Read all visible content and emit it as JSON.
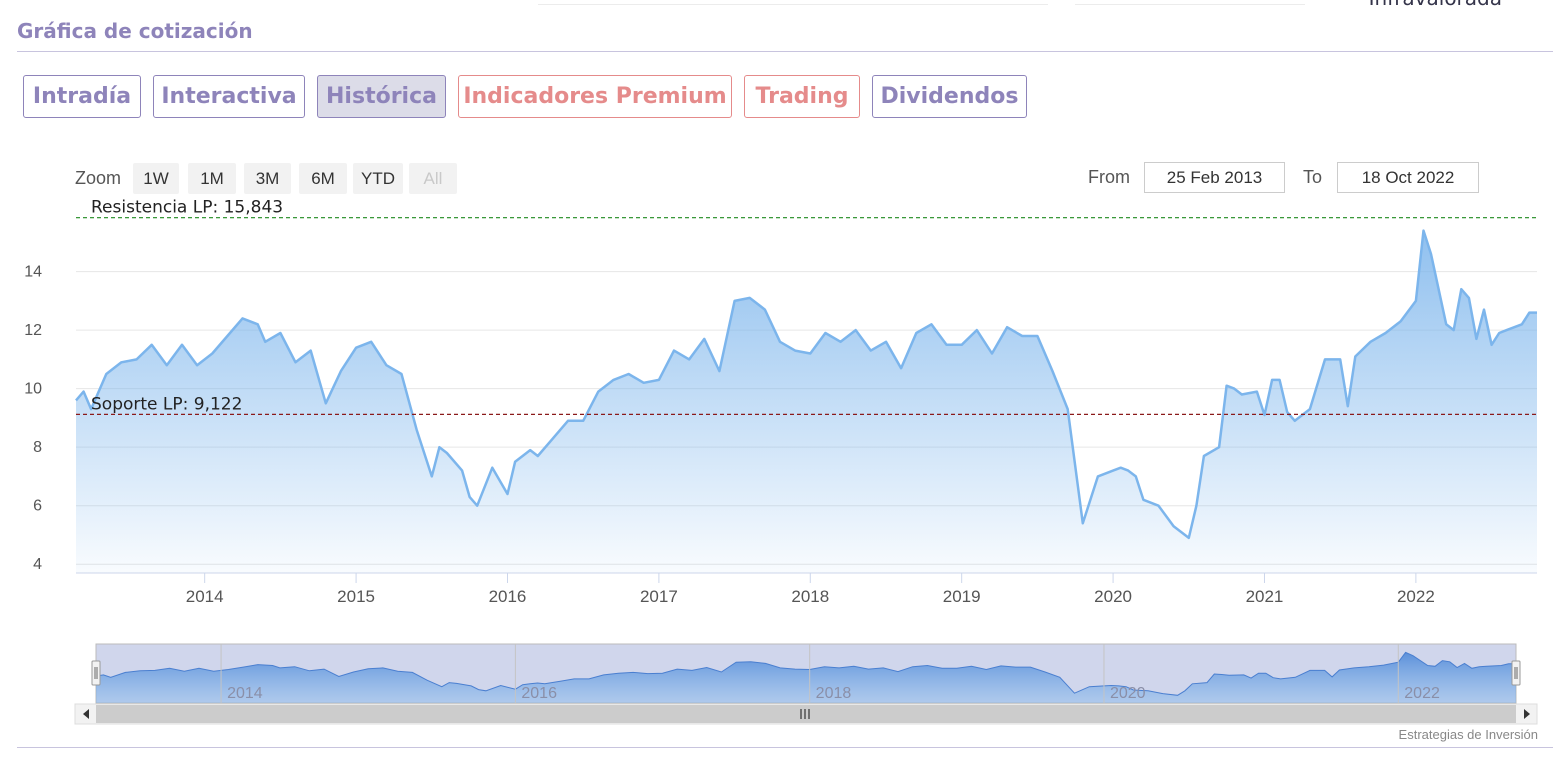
{
  "header": {
    "clipped_text": "Infravalorada",
    "section_title": "Gráfica de cotización"
  },
  "tabs": [
    {
      "label": "Intradía",
      "state": "normal"
    },
    {
      "label": "Interactiva",
      "state": "normal"
    },
    {
      "label": "Histórica",
      "state": "active"
    },
    {
      "label": "Indicadores Premium",
      "state": "premium"
    },
    {
      "label": "Trading",
      "state": "premium"
    },
    {
      "label": "Dividendos",
      "state": "normal"
    }
  ],
  "range_selector": {
    "zoom_label": "Zoom",
    "buttons": [
      "1W",
      "1M",
      "3M",
      "6M",
      "YTD",
      "All"
    ],
    "disabled_button": "All",
    "from_label": "From",
    "from_value": "25 Feb 2013",
    "to_label": "To",
    "to_value": "18 Oct 2022"
  },
  "colors": {
    "accent": "#8e84ba",
    "premium": "#e58b8b",
    "series_line": "#7cb5ec",
    "resistance_line": "#1f8a1f",
    "support_line": "#8b1a1a"
  },
  "credit": "Estrategias de Inversión",
  "chart_data": {
    "type": "area",
    "x_unit": "year",
    "series": [
      {
        "x": [
          2013.15,
          2013.2,
          2013.25,
          2013.35,
          2013.45,
          2013.55,
          2013.65,
          2013.75,
          2013.85,
          2013.95,
          2014.05,
          2014.15,
          2014.25,
          2014.35,
          2014.4,
          2014.5,
          2014.6,
          2014.7,
          2014.8,
          2014.9,
          2015.0,
          2015.1,
          2015.2,
          2015.3,
          2015.4,
          2015.5,
          2015.55,
          2015.6,
          2015.7,
          2015.75,
          2015.8,
          2015.9,
          2016.0,
          2016.05,
          2016.1,
          2016.15,
          2016.2,
          2016.3,
          2016.4,
          2016.5,
          2016.6,
          2016.7,
          2016.8,
          2016.9,
          2017.0,
          2017.1,
          2017.2,
          2017.3,
          2017.4,
          2017.5,
          2017.6,
          2017.7,
          2017.8,
          2017.9,
          2018.0,
          2018.1,
          2018.2,
          2018.3,
          2018.4,
          2018.5,
          2018.6,
          2018.7,
          2018.8,
          2018.9,
          2019.0,
          2019.1,
          2019.2,
          2019.3,
          2019.4,
          2019.5,
          2019.6,
          2019.7,
          2019.8,
          2019.9,
          2020.0,
          2020.05,
          2020.1,
          2020.15,
          2020.2,
          2020.3,
          2020.4,
          2020.5,
          2020.55,
          2020.6,
          2020.7,
          2020.75,
          2020.8,
          2020.85,
          2020.95,
          2021.0,
          2021.05,
          2021.1,
          2021.15,
          2021.2,
          2021.3,
          2021.4,
          2021.5,
          2021.55,
          2021.6,
          2021.7,
          2021.8,
          2021.9,
          2022.0,
          2022.05,
          2022.1,
          2022.2,
          2022.25,
          2022.3,
          2022.35,
          2022.4,
          2022.45,
          2022.5,
          2022.55,
          2022.6,
          2022.7,
          2022.75,
          2022.8
        ],
        "y": [
          9.6,
          9.9,
          9.3,
          10.5,
          10.9,
          11.0,
          11.5,
          10.8,
          11.5,
          10.8,
          11.2,
          11.8,
          12.4,
          12.2,
          11.6,
          11.9,
          10.9,
          11.3,
          9.5,
          10.6,
          11.4,
          11.6,
          10.8,
          10.5,
          8.6,
          7.0,
          8.0,
          7.8,
          7.2,
          6.3,
          6.0,
          7.3,
          6.4,
          7.5,
          7.7,
          7.9,
          7.7,
          8.3,
          8.9,
          8.9,
          9.9,
          10.3,
          10.5,
          10.2,
          10.3,
          11.3,
          11.0,
          11.7,
          10.6,
          13.0,
          13.1,
          12.7,
          11.6,
          11.3,
          11.2,
          11.9,
          11.6,
          12.0,
          11.3,
          11.6,
          10.7,
          11.9,
          12.2,
          11.5,
          11.5,
          12.0,
          11.2,
          12.1,
          11.8,
          11.8,
          10.6,
          9.3,
          5.4,
          7.0,
          7.2,
          7.3,
          7.2,
          7.0,
          6.2,
          6.0,
          5.3,
          4.9,
          6.0,
          7.7,
          8.0,
          10.1,
          10.0,
          9.8,
          9.9,
          9.1,
          10.3,
          10.3,
          9.2,
          8.9,
          9.3,
          11.0,
          11.0,
          9.4,
          11.1,
          11.6,
          11.9,
          12.3,
          13.0,
          15.4,
          14.6,
          12.2,
          12.0,
          13.4,
          13.1,
          11.7,
          12.7,
          11.5,
          11.9,
          12.0,
          12.2,
          12.6,
          12.6
        ]
      }
    ],
    "y_ticks": [
      4,
      6,
      8,
      10,
      12,
      14
    ],
    "x_ticks": [
      "2014",
      "2015",
      "2016",
      "2017",
      "2018",
      "2019",
      "2020",
      "2021",
      "2022"
    ],
    "ylim": [
      3.7,
      15.9
    ],
    "xlim": [
      2013.15,
      2022.8
    ],
    "plot_lines": [
      {
        "label": "Resistencia LP: 15,843",
        "value": 15.843,
        "style": "dashed",
        "color": "#1f8a1f"
      },
      {
        "label": "Soporte LP: 9,122",
        "value": 9.122,
        "style": "dashed",
        "color": "#8b1a1a"
      }
    ],
    "grid": true,
    "navigator": {
      "x_ticks": [
        "2014",
        "2016",
        "2018",
        "2020",
        "2022"
      ]
    }
  }
}
